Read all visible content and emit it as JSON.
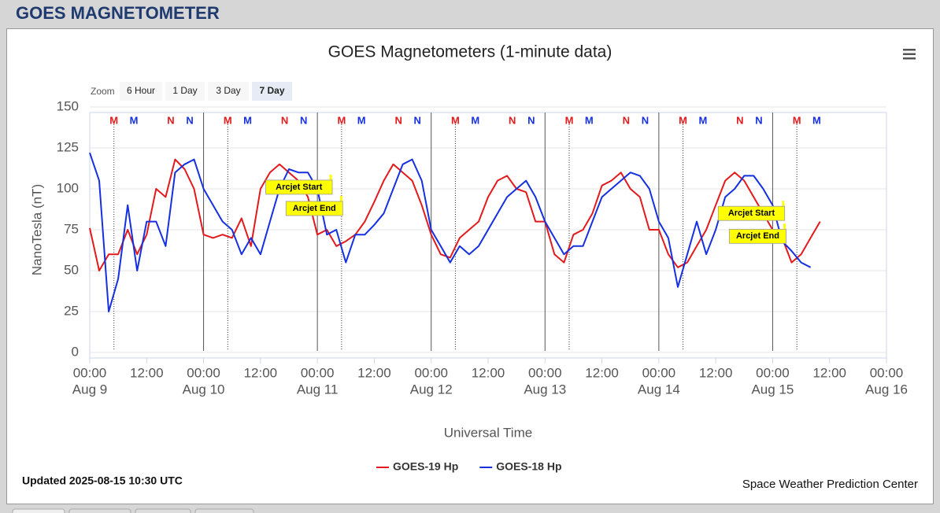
{
  "header": "GOES MAGNETOMETER",
  "zoom": {
    "label": "Zoom",
    "buttons": [
      "6 Hour",
      "1 Day",
      "3 Day",
      "7 Day"
    ],
    "selected": 3
  },
  "chart_data": {
    "type": "line",
    "title": "GOES Magnetometers (1-minute data)",
    "y_label": "NanoTesla (nT)",
    "x_label": "Universal Time",
    "xlim": [
      "Aug 9 00:00",
      "Aug 16 00:00"
    ],
    "xticks": [
      {
        "value": "Aug 9 00:00",
        "label": "00:00",
        "date": "Aug 9"
      },
      {
        "value": "Aug 9 12:00",
        "label": "12:00"
      },
      {
        "value": "Aug 10 00:00",
        "label": "00:00",
        "date": "Aug 10"
      },
      {
        "value": "Aug 10 12:00",
        "label": "12:00"
      },
      {
        "value": "Aug 11 00:00",
        "label": "00:00",
        "date": "Aug 11"
      },
      {
        "value": "Aug 11 12:00",
        "label": "12:00"
      },
      {
        "value": "Aug 12 00:00",
        "label": "00:00",
        "date": "Aug 12"
      },
      {
        "value": "Aug 12 12:00",
        "label": "12:00"
      },
      {
        "value": "Aug 13 00:00",
        "label": "00:00",
        "date": "Aug 13"
      },
      {
        "value": "Aug 13 12:00",
        "label": "12:00"
      },
      {
        "value": "Aug 14 00:00",
        "label": "00:00",
        "date": "Aug 14"
      },
      {
        "value": "Aug 14 12:00",
        "label": "12:00"
      },
      {
        "value": "Aug 15 00:00",
        "label": "00:00",
        "date": "Aug 15"
      },
      {
        "value": "Aug 15 12:00",
        "label": "12:00"
      },
      {
        "value": "Aug 16 00:00",
        "label": "00:00",
        "date": "Aug 16"
      }
    ],
    "ylim": [
      0,
      150
    ],
    "yticks": [
      0,
      25,
      50,
      75,
      100,
      125,
      150
    ],
    "grid": true,
    "x": [
      "Aug 9 00:00",
      "Aug 9 02:00",
      "Aug 9 04:00",
      "Aug 9 06:00",
      "Aug 9 08:00",
      "Aug 9 10:00",
      "Aug 9 12:00",
      "Aug 9 14:00",
      "Aug 9 16:00",
      "Aug 9 18:00",
      "Aug 9 20:00",
      "Aug 9 22:00",
      "Aug 10 00:00",
      "Aug 10 02:00",
      "Aug 10 04:00",
      "Aug 10 06:00",
      "Aug 10 08:00",
      "Aug 10 10:00",
      "Aug 10 12:00",
      "Aug 10 14:00",
      "Aug 10 16:00",
      "Aug 10 18:00",
      "Aug 10 20:00",
      "Aug 10 22:00",
      "Aug 11 00:00",
      "Aug 11 02:00",
      "Aug 11 04:00",
      "Aug 11 06:00",
      "Aug 11 08:00",
      "Aug 11 10:00",
      "Aug 11 12:00",
      "Aug 11 14:00",
      "Aug 11 16:00",
      "Aug 11 18:00",
      "Aug 11 20:00",
      "Aug 11 22:00",
      "Aug 12 00:00",
      "Aug 12 02:00",
      "Aug 12 04:00",
      "Aug 12 06:00",
      "Aug 12 08:00",
      "Aug 12 10:00",
      "Aug 12 12:00",
      "Aug 12 14:00",
      "Aug 12 16:00",
      "Aug 12 18:00",
      "Aug 12 20:00",
      "Aug 12 22:00",
      "Aug 13 00:00",
      "Aug 13 02:00",
      "Aug 13 04:00",
      "Aug 13 06:00",
      "Aug 13 08:00",
      "Aug 13 10:00",
      "Aug 13 12:00",
      "Aug 13 14:00",
      "Aug 13 16:00",
      "Aug 13 18:00",
      "Aug 13 20:00",
      "Aug 13 22:00",
      "Aug 14 00:00",
      "Aug 14 02:00",
      "Aug 14 04:00",
      "Aug 14 06:00",
      "Aug 14 08:00",
      "Aug 14 10:00",
      "Aug 14 12:00",
      "Aug 14 14:00",
      "Aug 14 16:00",
      "Aug 14 18:00",
      "Aug 14 20:00",
      "Aug 14 22:00",
      "Aug 15 00:00",
      "Aug 15 02:00",
      "Aug 15 04:00",
      "Aug 15 06:00",
      "Aug 15 08:00",
      "Aug 15 10:00"
    ],
    "series": [
      {
        "name": "GOES-19 Hp",
        "color": "#e31a1c",
        "values": [
          76,
          50,
          60,
          60,
          75,
          60,
          72,
          100,
          95,
          118,
          112,
          100,
          72,
          70,
          72,
          70,
          82,
          65,
          100,
          110,
          115,
          110,
          105,
          95,
          72,
          75,
          65,
          68,
          72,
          80,
          92,
          105,
          115,
          110,
          105,
          90,
          72,
          60,
          58,
          70,
          75,
          80,
          95,
          105,
          108,
          100,
          98,
          80,
          80,
          60,
          55,
          72,
          75,
          85,
          102,
          105,
          110,
          100,
          95,
          75,
          75,
          60,
          52,
          55,
          65,
          75,
          90,
          105,
          110,
          105,
          95,
          85,
          75,
          70,
          55,
          60,
          70,
          80
        ]
      },
      {
        "name": "GOES-18 Hp",
        "color": "#1530e0",
        "values": [
          122,
          105,
          25,
          45,
          90,
          50,
          80,
          80,
          65,
          110,
          115,
          118,
          100,
          90,
          80,
          75,
          60,
          70,
          60,
          80,
          100,
          112,
          110,
          110,
          100,
          72,
          75,
          55,
          72,
          72,
          78,
          85,
          100,
          115,
          118,
          105,
          75,
          65,
          55,
          65,
          60,
          65,
          75,
          85,
          95,
          100,
          105,
          95,
          80,
          70,
          60,
          65,
          65,
          80,
          95,
          100,
          105,
          110,
          108,
          100,
          80,
          70,
          40,
          60,
          80,
          60,
          75,
          95,
          100,
          108,
          108,
          100,
          90,
          68,
          62,
          55,
          52,
          null
        ]
      }
    ],
    "markers": [
      {
        "label": "M",
        "series": 0,
        "x": "Aug 9 05:06"
      },
      {
        "label": "M",
        "series": 1,
        "x": "Aug 9 09:18"
      },
      {
        "label": "N",
        "series": 0,
        "x": "Aug 9 17:06"
      },
      {
        "label": "N",
        "series": 1,
        "x": "Aug 9 21:06"
      },
      {
        "label": "M",
        "series": 0,
        "x": "Aug 10 05:06"
      },
      {
        "label": "M",
        "series": 1,
        "x": "Aug 10 09:18"
      },
      {
        "label": "N",
        "series": 0,
        "x": "Aug 10 17:06"
      },
      {
        "label": "N",
        "series": 1,
        "x": "Aug 10 21:06"
      },
      {
        "label": "M",
        "series": 0,
        "x": "Aug 11 05:06"
      },
      {
        "label": "M",
        "series": 1,
        "x": "Aug 11 09:18"
      },
      {
        "label": "N",
        "series": 0,
        "x": "Aug 11 17:06"
      },
      {
        "label": "N",
        "series": 1,
        "x": "Aug 11 21:06"
      },
      {
        "label": "M",
        "series": 0,
        "x": "Aug 12 05:06"
      },
      {
        "label": "M",
        "series": 1,
        "x": "Aug 12 09:18"
      },
      {
        "label": "N",
        "series": 0,
        "x": "Aug 12 17:06"
      },
      {
        "label": "N",
        "series": 1,
        "x": "Aug 12 21:06"
      },
      {
        "label": "M",
        "series": 0,
        "x": "Aug 13 05:06"
      },
      {
        "label": "M",
        "series": 1,
        "x": "Aug 13 09:18"
      },
      {
        "label": "N",
        "series": 0,
        "x": "Aug 13 17:06"
      },
      {
        "label": "N",
        "series": 1,
        "x": "Aug 13 21:06"
      },
      {
        "label": "M",
        "series": 0,
        "x": "Aug 14 05:06"
      },
      {
        "label": "M",
        "series": 1,
        "x": "Aug 14 09:18"
      },
      {
        "label": "N",
        "series": 0,
        "x": "Aug 14 17:06"
      },
      {
        "label": "N",
        "series": 1,
        "x": "Aug 14 21:06"
      },
      {
        "label": "M",
        "series": 0,
        "x": "Aug 15 05:06"
      },
      {
        "label": "M",
        "series": 1,
        "x": "Aug 15 09:18"
      }
    ],
    "annotations": [
      {
        "text": "Arcjet Start",
        "x": "Aug 11 02:48",
        "y": 101
      },
      {
        "text": "Arcjet End",
        "x": "Aug 11 05:00",
        "y": 88
      },
      {
        "text": "Arcjet Start",
        "x": "Aug 15 02:12",
        "y": 85
      },
      {
        "text": "Arcjet End",
        "x": "Aug 15 02:30",
        "y": 71
      }
    ]
  },
  "footer": {
    "updated": "Updated 2025-08-15 10:30 UTC",
    "credit": "Space Weather Prediction Center"
  }
}
